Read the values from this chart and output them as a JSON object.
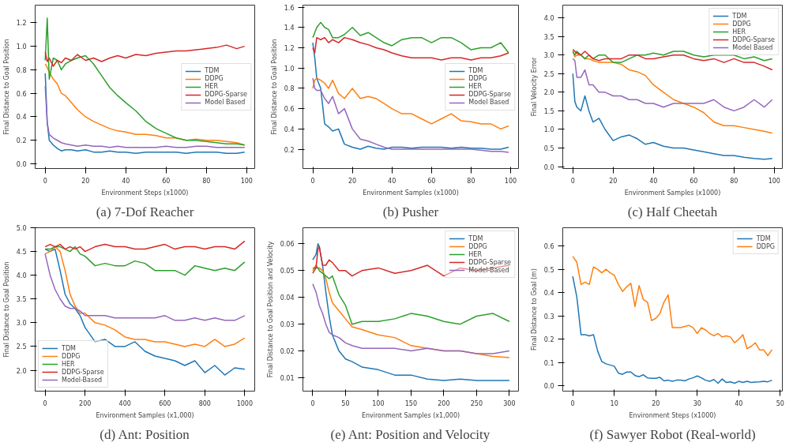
{
  "chart_data": [
    {
      "type": "line",
      "title": "(a) 7-Dof Reacher",
      "xlabel": "Environment Steps (x1000)",
      "ylabel": "Final Distance to Goal Position",
      "xlim": [
        -5,
        104
      ],
      "ylim": [
        -0.04,
        1.35
      ],
      "xticks": [
        0,
        20,
        40,
        60,
        80,
        100
      ],
      "yticks": [
        {
          "value": 0,
          "label": "0.0"
        },
        0.2,
        0.4,
        0.6,
        0.8,
        {
          "value": 1,
          "label": "1.0"
        },
        1.2
      ],
      "legend": "right",
      "grid": false,
      "x": [
        0,
        1,
        2,
        4,
        6,
        8,
        10,
        13,
        16,
        20,
        24,
        28,
        32,
        36,
        40,
        45,
        50,
        55,
        60,
        65,
        70,
        75,
        80,
        85,
        90,
        95,
        99
      ],
      "series": [
        {
          "name": "TDM",
          "color": "#1f77b4",
          "values": [
            0.77,
            0.35,
            0.2,
            0.16,
            0.13,
            0.11,
            0.12,
            0.12,
            0.11,
            0.12,
            0.1,
            0.1,
            0.11,
            0.1,
            0.1,
            0.09,
            0.1,
            0.1,
            0.1,
            0.1,
            0.09,
            0.1,
            0.1,
            0.1,
            0.09,
            0.09,
            0.1
          ]
        },
        {
          "name": "DDPG",
          "color": "#ff7f0e",
          "values": [
            0.85,
            0.82,
            0.78,
            0.72,
            0.68,
            0.6,
            0.58,
            0.52,
            0.46,
            0.4,
            0.36,
            0.33,
            0.3,
            0.28,
            0.27,
            0.25,
            0.25,
            0.24,
            0.22,
            0.22,
            0.2,
            0.21,
            0.2,
            0.2,
            0.19,
            0.18,
            0.16
          ]
        },
        {
          "name": "HER",
          "color": "#2ca02c",
          "values": [
            0.88,
            1.24,
            0.72,
            0.9,
            0.88,
            0.8,
            0.85,
            0.88,
            0.9,
            0.92,
            0.85,
            0.75,
            0.65,
            0.58,
            0.52,
            0.45,
            0.36,
            0.3,
            0.26,
            0.22,
            0.2,
            0.2,
            0.19,
            0.18,
            0.17,
            0.17,
            0.16
          ]
        },
        {
          "name": "DDPG-Sparse",
          "color": "#d62728",
          "values": [
            0.95,
            0.87,
            0.9,
            0.83,
            0.88,
            0.86,
            0.9,
            0.88,
            0.93,
            0.88,
            0.9,
            0.87,
            0.9,
            0.92,
            0.9,
            0.93,
            0.92,
            0.94,
            0.95,
            0.96,
            0.96,
            0.97,
            0.98,
            0.99,
            1.01,
            0.98,
            1.0
          ]
        },
        {
          "name": "Model Based",
          "color": "#9467bd",
          "values": [
            0.66,
            0.35,
            0.25,
            0.22,
            0.2,
            0.18,
            0.17,
            0.16,
            0.15,
            0.16,
            0.15,
            0.15,
            0.14,
            0.15,
            0.14,
            0.14,
            0.14,
            0.14,
            0.15,
            0.14,
            0.14,
            0.15,
            0.15,
            0.14,
            0.14,
            0.14,
            0.14
          ]
        }
      ]
    },
    {
      "type": "line",
      "title": "(b) Pusher",
      "xlabel": "Environment Samples (x1000)",
      "ylabel": "Final Distance to Goal Position",
      "xlim": [
        -5,
        104
      ],
      "ylim": [
        0.01,
        1.62
      ],
      "xticks": [
        0,
        20,
        40,
        60,
        80,
        100
      ],
      "yticks": [
        0.2,
        0.4,
        0.6,
        0.8,
        {
          "value": 1,
          "label": "1.0"
        },
        1.2,
        1.4,
        1.6
      ],
      "legend": "right",
      "grid": false,
      "x": [
        0,
        1,
        2,
        4,
        6,
        8,
        10,
        13,
        16,
        20,
        24,
        28,
        32,
        36,
        40,
        45,
        50,
        55,
        60,
        65,
        70,
        75,
        80,
        85,
        90,
        95,
        99
      ],
      "series": [
        {
          "name": "TDM",
          "color": "#1f77b4",
          "values": [
            1.25,
            1.1,
            0.9,
            0.8,
            0.45,
            0.42,
            0.38,
            0.4,
            0.25,
            0.22,
            0.2,
            0.23,
            0.21,
            0.2,
            0.22,
            0.22,
            0.21,
            0.22,
            0.22,
            0.22,
            0.21,
            0.22,
            0.21,
            0.21,
            0.2,
            0.2,
            0.22
          ]
        },
        {
          "name": "DDPG",
          "color": "#ff7f0e",
          "values": [
            0.8,
            0.88,
            0.9,
            0.88,
            0.85,
            0.8,
            0.88,
            0.75,
            0.7,
            0.8,
            0.7,
            0.72,
            0.7,
            0.65,
            0.6,
            0.55,
            0.55,
            0.5,
            0.45,
            0.5,
            0.55,
            0.48,
            0.47,
            0.45,
            0.45,
            0.4,
            0.43
          ]
        },
        {
          "name": "HER",
          "color": "#2ca02c",
          "values": [
            1.3,
            1.35,
            1.4,
            1.45,
            1.4,
            1.38,
            1.3,
            1.3,
            1.33,
            1.4,
            1.32,
            1.35,
            1.3,
            1.25,
            1.22,
            1.28,
            1.3,
            1.3,
            1.25,
            1.3,
            1.3,
            1.25,
            1.18,
            1.2,
            1.2,
            1.25,
            1.15
          ]
        },
        {
          "name": "DDPG-Sparse",
          "color": "#d62728",
          "values": [
            1.2,
            1.15,
            1.3,
            1.28,
            1.3,
            1.25,
            1.28,
            1.25,
            1.3,
            1.28,
            1.25,
            1.23,
            1.2,
            1.18,
            1.15,
            1.12,
            1.1,
            1.1,
            1.1,
            1.08,
            1.1,
            1.1,
            1.08,
            1.1,
            1.1,
            1.12,
            1.15
          ]
        },
        {
          "name": "Model Based",
          "color": "#9467bd",
          "values": [
            0.9,
            0.8,
            0.78,
            0.78,
            0.7,
            0.65,
            0.72,
            0.55,
            0.6,
            0.4,
            0.3,
            0.28,
            0.25,
            0.22,
            0.2,
            0.2,
            0.2,
            0.2,
            0.2,
            0.2,
            0.2,
            0.2,
            0.2,
            0.19,
            0.18,
            0.18,
            0.17
          ]
        }
      ]
    },
    {
      "type": "line",
      "title": "(c) Half Cheetah",
      "xlabel": "Environment Samples (x1000)",
      "ylabel": "Final Velocity Error",
      "xlim": [
        -5,
        104
      ],
      "ylim": [
        -0.05,
        4.34
      ],
      "xticks": [
        0,
        20,
        40,
        60,
        80,
        100
      ],
      "yticks": [
        {
          "value": 0,
          "label": "0.0"
        },
        0.5,
        {
          "value": 1,
          "label": "1.0"
        },
        1.5,
        {
          "value": 2,
          "label": "2.0"
        },
        2.5,
        {
          "value": 3,
          "label": "3.0"
        },
        3.5,
        {
          "value": 4,
          "label": "4.0"
        }
      ],
      "legend": "top right",
      "grid": false,
      "x": [
        0,
        1,
        2,
        4,
        6,
        8,
        10,
        13,
        16,
        20,
        24,
        28,
        32,
        36,
        40,
        45,
        50,
        55,
        60,
        65,
        70,
        75,
        80,
        85,
        90,
        95,
        99
      ],
      "series": [
        {
          "name": "TDM",
          "color": "#1f77b4",
          "values": [
            2.5,
            1.75,
            1.6,
            1.5,
            1.9,
            1.5,
            1.2,
            1.3,
            1.0,
            0.7,
            0.8,
            0.85,
            0.75,
            0.6,
            0.65,
            0.55,
            0.5,
            0.5,
            0.45,
            0.4,
            0.35,
            0.3,
            0.3,
            0.25,
            0.22,
            0.2,
            0.22
          ]
        },
        {
          "name": "DDPG",
          "color": "#ff7f0e",
          "values": [
            3.1,
            2.95,
            3.0,
            3.0,
            2.9,
            2.9,
            2.85,
            2.8,
            2.8,
            2.8,
            2.75,
            2.6,
            2.55,
            2.45,
            2.2,
            2.0,
            1.8,
            1.7,
            1.6,
            1.45,
            1.2,
            1.1,
            1.1,
            1.05,
            1.0,
            0.95,
            0.9
          ]
        },
        {
          "name": "HER",
          "color": "#2ca02c",
          "values": [
            3.1,
            3.0,
            3.1,
            3.0,
            2.9,
            3.0,
            2.9,
            3.0,
            3.0,
            2.8,
            2.8,
            2.9,
            3.0,
            3.0,
            3.05,
            3.0,
            3.1,
            3.1,
            3.0,
            2.95,
            3.0,
            3.0,
            3.0,
            2.9,
            2.95,
            2.85,
            2.9
          ]
        },
        {
          "name": "DDPG-Sparse",
          "color": "#d62728",
          "values": [
            3.15,
            3.1,
            3.05,
            3.0,
            3.1,
            3.0,
            2.9,
            2.85,
            2.9,
            2.9,
            2.9,
            3.0,
            3.0,
            2.9,
            2.9,
            2.95,
            3.0,
            3.0,
            2.9,
            2.85,
            2.9,
            2.8,
            2.9,
            2.8,
            2.8,
            2.7,
            2.6
          ]
        },
        {
          "name": "Model Based",
          "color": "#9467bd",
          "values": [
            2.9,
            2.85,
            2.4,
            2.4,
            2.6,
            2.2,
            2.2,
            2.0,
            2.0,
            1.9,
            1.9,
            1.8,
            1.8,
            1.7,
            1.7,
            1.6,
            1.7,
            1.7,
            1.7,
            1.7,
            1.8,
            1.6,
            1.5,
            1.6,
            1.8,
            1.6,
            1.8
          ]
        }
      ]
    },
    {
      "type": "line",
      "title": "(d) Ant: Position",
      "xlabel": "Environment Samples (x1,000)",
      "ylabel": "Final Distance to Goal Position",
      "xlim": [
        -50,
        1050
      ],
      "ylim": [
        1.56,
        5.0
      ],
      "xticks": [
        0,
        200,
        400,
        600,
        800,
        1000
      ],
      "yticks": [
        {
          "value": 2,
          "label": "2.0"
        },
        2.5,
        {
          "value": 3,
          "label": "3.0"
        },
        3.5,
        {
          "value": 4,
          "label": "4.0"
        },
        4.5,
        {
          "value": 5,
          "label": "5.0"
        }
      ],
      "legend": "bottom left",
      "grid": false,
      "x": [
        0,
        25,
        50,
        75,
        100,
        125,
        150,
        175,
        200,
        250,
        300,
        350,
        400,
        450,
        500,
        550,
        600,
        650,
        700,
        750,
        800,
        850,
        900,
        950,
        1000
      ],
      "series": [
        {
          "name": "TDM",
          "color": "#1f77b4",
          "values": [
            4.55,
            4.5,
            4.55,
            4.1,
            3.6,
            3.4,
            3.3,
            3.15,
            2.9,
            2.6,
            2.65,
            2.5,
            2.5,
            2.6,
            2.4,
            2.3,
            2.25,
            2.2,
            2.1,
            2.2,
            1.95,
            2.1,
            1.9,
            2.05,
            2.02
          ]
        },
        {
          "name": "DDPG",
          "color": "#ff7f0e",
          "values": [
            4.45,
            4.5,
            4.6,
            4.5,
            4.1,
            3.6,
            3.35,
            3.2,
            3.2,
            3.0,
            2.95,
            2.85,
            2.7,
            2.65,
            2.65,
            2.6,
            2.6,
            2.55,
            2.5,
            2.55,
            2.5,
            2.65,
            2.5,
            2.55,
            2.68
          ]
        },
        {
          "name": "HER",
          "color": "#2ca02c",
          "values": [
            4.55,
            4.55,
            4.6,
            4.6,
            4.55,
            4.5,
            4.6,
            4.45,
            4.4,
            4.2,
            4.25,
            4.2,
            4.2,
            4.3,
            4.25,
            4.1,
            4.1,
            4.1,
            4.0,
            4.2,
            4.15,
            4.1,
            4.15,
            4.1,
            4.28
          ]
        },
        {
          "name": "DDPG-Sparse",
          "color": "#d62728",
          "values": [
            4.6,
            4.65,
            4.6,
            4.65,
            4.55,
            4.6,
            4.55,
            4.6,
            4.5,
            4.6,
            4.65,
            4.6,
            4.6,
            4.55,
            4.55,
            4.6,
            4.65,
            4.55,
            4.6,
            4.6,
            4.55,
            4.6,
            4.6,
            4.55,
            4.72
          ]
        },
        {
          "name": "Model-Based",
          "color": "#9467bd",
          "values": [
            4.45,
            4.0,
            3.7,
            3.5,
            3.35,
            3.3,
            3.3,
            3.25,
            3.15,
            3.15,
            3.15,
            3.1,
            3.1,
            3.1,
            3.1,
            3.1,
            3.15,
            3.05,
            3.05,
            3.1,
            3.05,
            3.1,
            3.05,
            3.05,
            3.15
          ]
        }
      ]
    },
    {
      "type": "line",
      "title": "(e) Ant: Position and Velocity",
      "xlabel": "Environment Samples (x1,000)",
      "ylabel": "Final Distance to Goal Position and Velocity",
      "xlim": [
        -15,
        314
      ],
      "ylim": [
        0.005,
        0.066
      ],
      "xticks": [
        0,
        50,
        100,
        150,
        200,
        250,
        300
      ],
      "yticks": [
        0.01,
        0.02,
        0.03,
        0.04,
        0.05,
        0.06
      ],
      "legend": "top right",
      "grid": false,
      "x": [
        0,
        5,
        8,
        10,
        15,
        20,
        25,
        30,
        40,
        50,
        60,
        75,
        100,
        125,
        150,
        175,
        200,
        225,
        250,
        275,
        300
      ],
      "series": [
        {
          "name": "TDM",
          "color": "#1f77b4",
          "values": [
            0.054,
            0.056,
            0.06,
            0.059,
            0.052,
            0.042,
            0.033,
            0.026,
            0.02,
            0.017,
            0.016,
            0.014,
            0.013,
            0.011,
            0.011,
            0.0095,
            0.009,
            0.0095,
            0.009,
            0.009,
            0.009
          ]
        },
        {
          "name": "DDPG",
          "color": "#ff7f0e",
          "values": [
            0.05,
            0.052,
            0.051,
            0.051,
            0.05,
            0.047,
            0.042,
            0.038,
            0.035,
            0.032,
            0.029,
            0.028,
            0.026,
            0.025,
            0.022,
            0.021,
            0.02,
            0.02,
            0.019,
            0.018,
            0.0175
          ]
        },
        {
          "name": "HER",
          "color": "#2ca02c",
          "values": [
            0.051,
            0.051,
            0.051,
            0.05,
            0.049,
            0.048,
            0.047,
            0.048,
            0.041,
            0.037,
            0.03,
            0.031,
            0.031,
            0.032,
            0.034,
            0.033,
            0.031,
            0.03,
            0.033,
            0.034,
            0.031
          ]
        },
        {
          "name": "DDPG-Sparse",
          "color": "#d62728",
          "values": [
            0.049,
            0.051,
            0.058,
            0.059,
            0.052,
            0.052,
            0.054,
            0.053,
            0.05,
            0.05,
            0.048,
            0.05,
            0.051,
            0.049,
            0.05,
            0.052,
            0.048,
            0.051,
            0.05,
            0.051,
            0.052
          ]
        },
        {
          "name": "Model-Based",
          "color": "#9467bd",
          "values": [
            0.045,
            0.042,
            0.039,
            0.037,
            0.034,
            0.03,
            0.027,
            0.026,
            0.025,
            0.023,
            0.022,
            0.021,
            0.021,
            0.021,
            0.02,
            0.021,
            0.02,
            0.02,
            0.019,
            0.019,
            0.02
          ]
        }
      ]
    },
    {
      "type": "line",
      "title": "(f) Sawyer Robot (Real-world)",
      "xlabel": "Environment Steps (x1000)",
      "ylabel": "Final Distance to Goal (m)",
      "xlim": [
        -2.4,
        50.5
      ],
      "ylim": [
        -0.022,
        0.678
      ],
      "xticks": [
        0,
        10,
        20,
        30,
        40,
        50
      ],
      "yticks": [
        {
          "value": 0,
          "label": "0.0"
        },
        0.1,
        0.2,
        0.3,
        0.4,
        0.5,
        0.6
      ],
      "legend": "top right",
      "grid": false,
      "x": [
        0,
        1,
        2,
        3,
        4,
        5,
        6,
        7,
        8,
        9,
        10,
        11,
        12,
        13,
        14,
        15,
        16,
        17,
        18,
        19,
        20,
        21,
        22,
        23,
        24,
        25,
        26,
        27,
        28,
        29,
        30,
        31,
        32,
        33,
        34,
        35,
        36,
        37,
        38,
        39,
        40,
        41,
        42,
        43,
        44,
        45,
        46,
        47,
        48
      ],
      "series": [
        {
          "name": "TDM",
          "color": "#1f77b4",
          "values": [
            0.47,
            0.38,
            0.22,
            0.22,
            0.215,
            0.22,
            0.15,
            0.105,
            0.095,
            0.09,
            0.085,
            0.055,
            0.05,
            0.06,
            0.06,
            0.045,
            0.04,
            0.048,
            0.035,
            0.033,
            0.033,
            0.037,
            0.022,
            0.025,
            0.02,
            0.025,
            0.025,
            0.022,
            0.03,
            0.035,
            0.043,
            0.035,
            0.025,
            0.02,
            0.028,
            0.012,
            0.03,
            0.015,
            0.018,
            0.012,
            0.02,
            0.015,
            0.02,
            0.015,
            0.017,
            0.018,
            0.02,
            0.018,
            0.025
          ]
        },
        {
          "name": "DDPG",
          "color": "#ff7f0e",
          "values": [
            0.555,
            0.53,
            0.435,
            0.445,
            0.435,
            0.51,
            0.5,
            0.485,
            0.5,
            0.485,
            0.475,
            0.435,
            0.405,
            0.425,
            0.44,
            0.34,
            0.43,
            0.37,
            0.36,
            0.28,
            0.29,
            0.31,
            0.36,
            0.39,
            0.25,
            0.25,
            0.25,
            0.255,
            0.26,
            0.25,
            0.225,
            0.25,
            0.24,
            0.225,
            0.215,
            0.225,
            0.21,
            0.215,
            0.21,
            0.185,
            0.2,
            0.22,
            0.16,
            0.17,
            0.185,
            0.155,
            0.155,
            0.13,
            0.155
          ]
        }
      ]
    }
  ]
}
